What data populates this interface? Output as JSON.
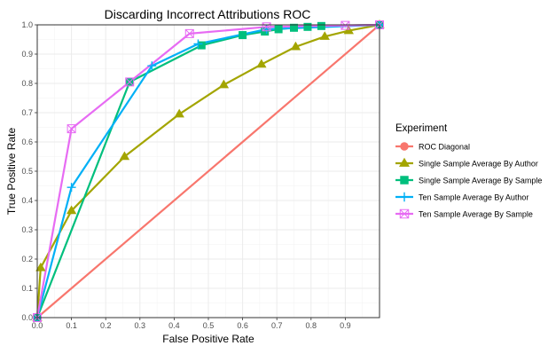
{
  "chart_data": {
    "type": "line",
    "title": "Discarding Incorrect Attributions ROC",
    "xlabel": "False Positive Rate",
    "ylabel": "True Positive Rate",
    "xlim": [
      0,
      1
    ],
    "ylim": [
      0,
      1
    ],
    "xticks": [
      0,
      0.1,
      0.2,
      0.3,
      0.4,
      0.5,
      0.6,
      0.7,
      0.8,
      0.9
    ],
    "yticks": [
      0,
      0.1,
      0.2,
      0.3,
      0.4,
      0.5,
      0.6,
      0.7,
      0.8,
      0.9,
      1.0
    ],
    "xtick_labels": [
      "0.0",
      "0.1",
      "0.2",
      "0.3",
      "0.4",
      "0.5",
      "0.6",
      "0.7",
      "0.8",
      "0.9"
    ],
    "ytick_labels": [
      "0.0",
      "0.1",
      "0.2",
      "0.3",
      "0.4",
      "0.5",
      "0.6",
      "0.7",
      "0.8",
      "0.9",
      "1.0"
    ],
    "grid": true,
    "legend": {
      "title": "Experiment",
      "position": "right"
    },
    "series": [
      {
        "name": "ROC Diagonal",
        "color": "#F8766D",
        "marker": "circle",
        "x": [
          0,
          1
        ],
        "y": [
          0,
          1
        ]
      },
      {
        "name": "Single Sample Average By Author",
        "color": "#A3A500",
        "marker": "triangle",
        "x": [
          0,
          0.01,
          0.1,
          0.255,
          0.415,
          0.545,
          0.655,
          0.755,
          0.84,
          0.91,
          1.0
        ],
        "y": [
          0,
          0.17,
          0.365,
          0.55,
          0.695,
          0.795,
          0.865,
          0.925,
          0.96,
          0.98,
          1.0
        ]
      },
      {
        "name": "Single Sample Average By Sample",
        "color": "#00BF7D",
        "marker": "square",
        "x": [
          0,
          0.27,
          0.48,
          0.6,
          0.665,
          0.705,
          0.75,
          0.79,
          0.83,
          1.0
        ],
        "y": [
          0,
          0.805,
          0.93,
          0.965,
          0.977,
          0.985,
          0.99,
          0.993,
          0.996,
          1.0
        ]
      },
      {
        "name": "Ten Sample Average By Author",
        "color": "#00B0F6",
        "marker": "plus",
        "x": [
          0,
          0.1,
          0.335,
          0.47,
          0.67,
          1.0
        ],
        "y": [
          0,
          0.445,
          0.86,
          0.935,
          0.985,
          1.0
        ]
      },
      {
        "name": "Ten Sample Average By Sample",
        "color": "#E76BF3",
        "marker": "boxcross",
        "x": [
          0,
          0.1,
          0.27,
          0.445,
          0.67,
          0.9,
          1.0
        ],
        "y": [
          0,
          0.645,
          0.805,
          0.97,
          0.993,
          0.998,
          1.0
        ]
      }
    ]
  }
}
